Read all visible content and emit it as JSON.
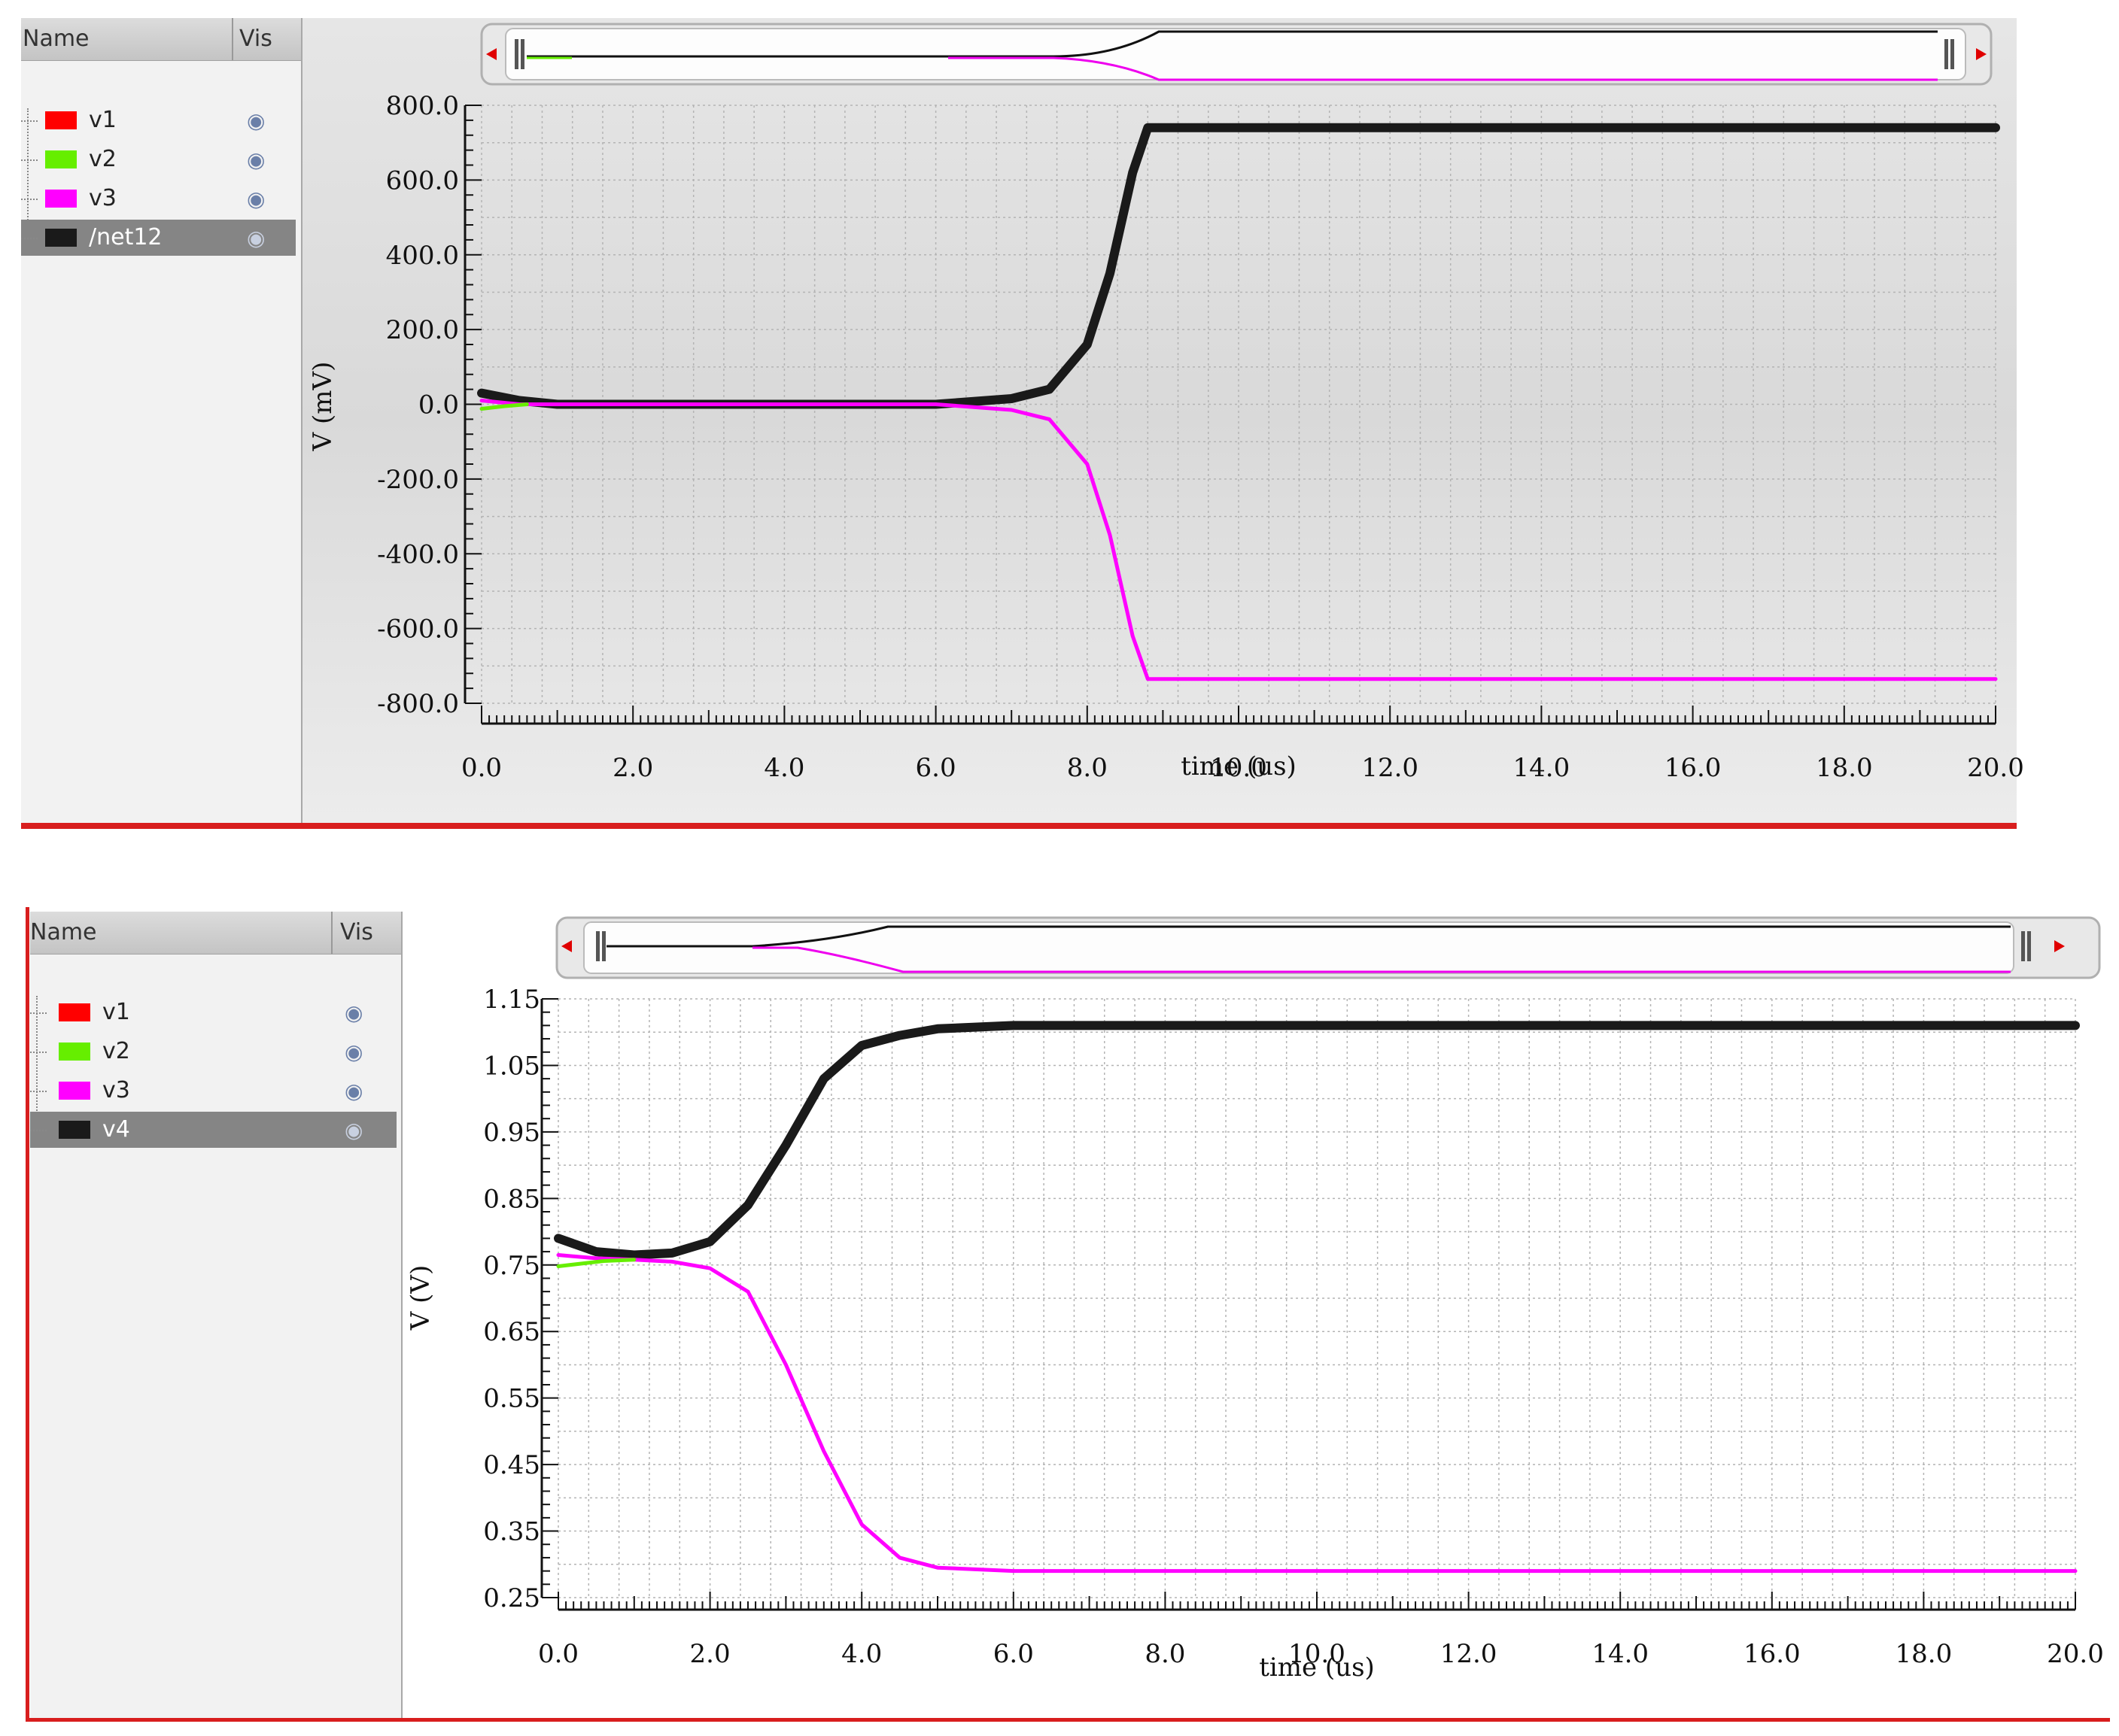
{
  "top_panel": {
    "columns": {
      "name": "Name",
      "vis": "Vis"
    },
    "signals": [
      {
        "label": "v1",
        "color": "#ff0000",
        "selected": false
      },
      {
        "label": "v2",
        "color": "#66ee00",
        "selected": false
      },
      {
        "label": "v3",
        "color": "#ff00ff",
        "selected": false
      },
      {
        "label": "/net12",
        "color": "#1a1a1a",
        "selected": true
      }
    ]
  },
  "bottom_panel": {
    "columns": {
      "name": "Name",
      "vis": "Vis"
    },
    "signals": [
      {
        "label": "v1",
        "color": "#ff0000",
        "selected": false
      },
      {
        "label": "v2",
        "color": "#66ee00",
        "selected": false
      },
      {
        "label": "v3",
        "color": "#ff00ff",
        "selected": false
      },
      {
        "label": "v4",
        "color": "#1a1a1a",
        "selected": true
      }
    ]
  },
  "chart_data": [
    {
      "type": "line",
      "xlabel": "time (us)",
      "ylabel": "V (mV)",
      "xlim": [
        0,
        20
      ],
      "ylim": [
        -800,
        800
      ],
      "xticks": [
        "0.0",
        "2.0",
        "4.0",
        "6.0",
        "8.0",
        "10.0",
        "12.0",
        "14.0",
        "16.0",
        "18.0",
        "20.0"
      ],
      "yticks": [
        "800.0",
        "600.0",
        "400.0",
        "200.0",
        "0.0",
        "-200.0",
        "-400.0",
        "-600.0",
        "-800.0"
      ],
      "grid": true,
      "series": [
        {
          "color": "#1a1a1a",
          "x": [
            0,
            0.5,
            1,
            2,
            4,
            6,
            7,
            7.5,
            8,
            8.3,
            8.6,
            8.8,
            10,
            20
          ],
          "y": [
            30,
            10,
            0,
            0,
            0,
            0,
            15,
            40,
            160,
            350,
            620,
            740,
            740,
            740
          ]
        },
        {
          "color": "#ff00ff",
          "x": [
            0,
            0.5,
            1,
            2,
            4,
            6,
            7,
            7.5,
            8,
            8.3,
            8.6,
            8.8,
            10,
            20
          ],
          "y": [
            10,
            0,
            0,
            0,
            0,
            0,
            -15,
            -40,
            -160,
            -350,
            -620,
            -735,
            -735,
            -735
          ]
        },
        {
          "color": "#66ee00",
          "x": [
            0,
            0.3,
            0.6
          ],
          "y": [
            -12,
            -5,
            0
          ]
        }
      ]
    },
    {
      "type": "line",
      "xlabel": "time (us)",
      "ylabel": "V (V)",
      "xlim": [
        0,
        20
      ],
      "ylim": [
        0.25,
        1.15
      ],
      "xticks": [
        "0.0",
        "2.0",
        "4.0",
        "6.0",
        "8.0",
        "10.0",
        "12.0",
        "14.0",
        "16.0",
        "18.0",
        "20.0"
      ],
      "yticks": [
        "1.15",
        "1.05",
        "0.95",
        "0.85",
        "0.75",
        "0.65",
        "0.55",
        "0.45",
        "0.35",
        "0.25"
      ],
      "grid": true,
      "series": [
        {
          "color": "#1a1a1a",
          "x": [
            0,
            0.5,
            1,
            1.5,
            2,
            2.5,
            3,
            3.5,
            4,
            4.5,
            5,
            6,
            20
          ],
          "y": [
            0.79,
            0.77,
            0.765,
            0.768,
            0.785,
            0.84,
            0.93,
            1.03,
            1.08,
            1.095,
            1.105,
            1.11,
            1.11
          ]
        },
        {
          "color": "#ff00ff",
          "x": [
            0,
            0.5,
            1,
            1.5,
            2,
            2.5,
            3,
            3.5,
            4,
            4.5,
            5,
            6,
            20
          ],
          "y": [
            0.765,
            0.76,
            0.758,
            0.755,
            0.745,
            0.71,
            0.6,
            0.47,
            0.36,
            0.31,
            0.295,
            0.29,
            0.29
          ]
        },
        {
          "color": "#66ee00",
          "x": [
            0,
            0.3,
            0.6,
            1
          ],
          "y": [
            0.748,
            0.752,
            0.756,
            0.758
          ]
        }
      ]
    }
  ]
}
